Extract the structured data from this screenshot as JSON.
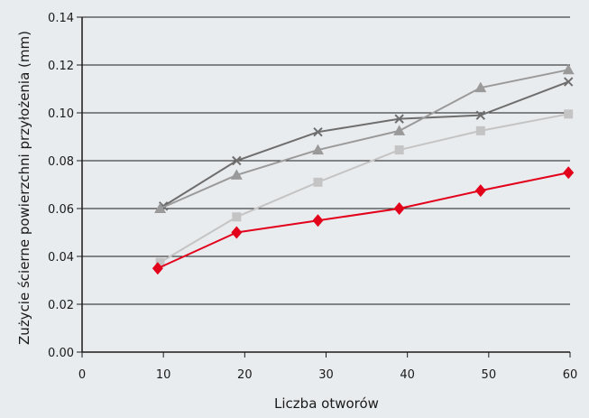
{
  "chart_data": {
    "type": "line",
    "xlabel": "Liczba otworów",
    "ylabel": "Zużycie ścierne powierzchni przyłożenia (mm)",
    "xlim": [
      0,
      60
    ],
    "ylim": [
      0,
      0.14
    ],
    "x_ticks": [
      "0",
      "10",
      "20",
      "30",
      "40",
      "50",
      "60"
    ],
    "y_ticks": [
      "0.00",
      "0.02",
      "0.04",
      "0.06",
      "0.08",
      "0.10",
      "0.12",
      "0.14"
    ],
    "grid": "horizontal",
    "series": [
      {
        "marker": "x",
        "color": "#6e6e6e",
        "x": [
          10,
          19,
          29,
          39,
          49,
          59.8
        ],
        "y": [
          0.061,
          0.08,
          0.092,
          0.0975,
          0.099,
          0.113
        ]
      },
      {
        "marker": "triangle",
        "color": "#9a9a9a",
        "x": [
          9.6,
          19,
          29,
          39,
          49,
          59.8
        ],
        "y": [
          0.06,
          0.074,
          0.0845,
          0.0925,
          0.1105,
          0.118
        ]
      },
      {
        "marker": "square",
        "color": "#c4c4c4",
        "x": [
          9.6,
          19,
          29,
          39,
          49,
          59.8
        ],
        "y": [
          0.0375,
          0.0565,
          0.071,
          0.0845,
          0.0925,
          0.0995
        ]
      },
      {
        "marker": "diamond",
        "color": "#e2001a",
        "x": [
          9.3,
          19,
          29,
          39,
          49,
          59.8
        ],
        "y": [
          0.035,
          0.05,
          0.055,
          0.06,
          0.0675,
          0.075
        ]
      }
    ]
  }
}
